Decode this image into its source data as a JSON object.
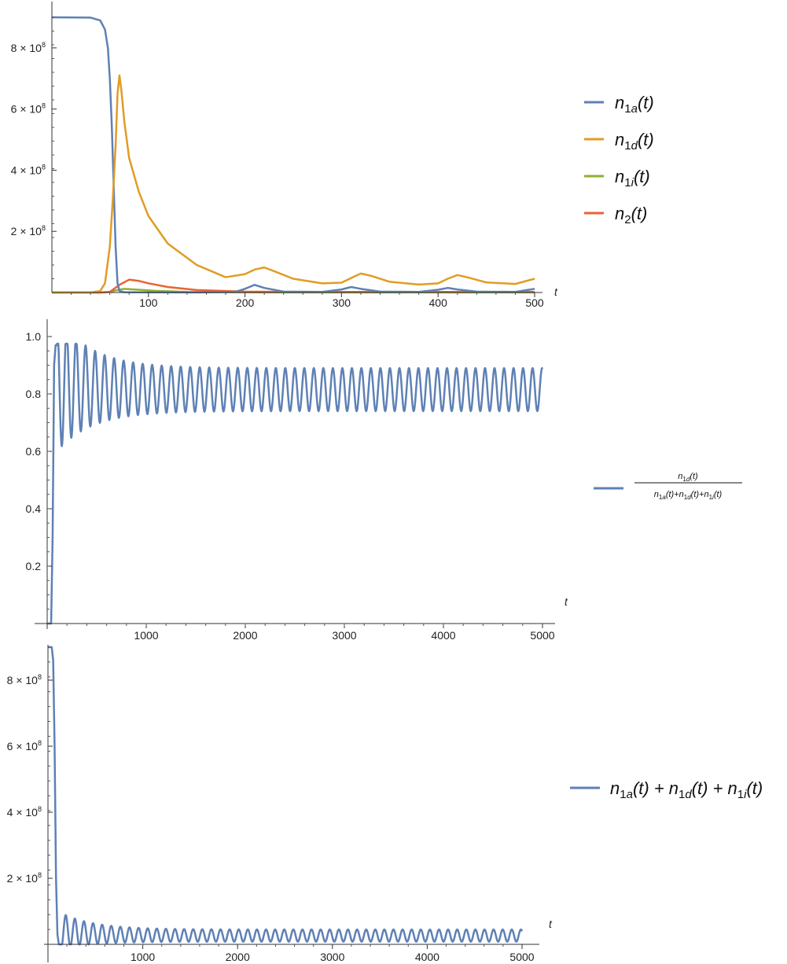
{
  "chart_data": [
    {
      "type": "line",
      "xlabel": "t",
      "xlim": [
        0,
        500
      ],
      "ylim": [
        0,
        900000000
      ],
      "x_ticks": [
        "100",
        "200",
        "300",
        "400",
        "500"
      ],
      "y_ticks": [
        "2 × 10^8",
        "4 × 10^8",
        "6 × 10^8",
        "8 × 10^8"
      ],
      "legend_position": "right",
      "series": [
        {
          "name": "n1a(t)",
          "color": "#5E81B5",
          "x": [
            0,
            40,
            50,
            55,
            58,
            60,
            62,
            64,
            66,
            68,
            70,
            75,
            100,
            150,
            190,
            200,
            210,
            220,
            240,
            280,
            300,
            310,
            320,
            340,
            380,
            400,
            410,
            420,
            440,
            480,
            500
          ],
          "y": [
            900000000,
            899000000,
            890000000,
            860000000,
            800000000,
            700000000,
            550000000,
            350000000,
            150000000,
            30000000,
            5000000,
            1000000,
            500000,
            300000,
            2000000,
            12000000,
            25000000,
            15000000,
            3000000,
            2000000,
            10000000,
            18000000,
            12000000,
            3000000,
            2000000,
            9000000,
            15000000,
            10000000,
            3000000,
            2000000,
            12000000
          ]
        },
        {
          "name": "n1d(t)",
          "color": "#E19C24",
          "x": [
            0,
            40,
            50,
            55,
            60,
            63,
            66,
            68,
            70,
            72,
            75,
            80,
            90,
            100,
            120,
            150,
            180,
            200,
            210,
            220,
            230,
            250,
            280,
            300,
            315,
            320,
            330,
            350,
            380,
            400,
            410,
            420,
            430,
            450,
            480,
            500
          ],
          "y": [
            0,
            500000,
            5000000,
            30000000,
            150000000,
            300000000,
            480000000,
            650000000,
            710000000,
            660000000,
            560000000,
            440000000,
            330000000,
            250000000,
            160000000,
            90000000,
            50000000,
            60000000,
            75000000,
            82000000,
            70000000,
            45000000,
            30000000,
            32000000,
            55000000,
            62000000,
            55000000,
            35000000,
            26000000,
            30000000,
            45000000,
            57000000,
            50000000,
            33000000,
            28000000,
            45000000
          ]
        },
        {
          "name": "n1i(t)",
          "color": "#8FB032",
          "x": [
            0,
            50,
            60,
            68,
            75,
            90,
            110,
            140,
            200,
            300,
            400,
            500
          ],
          "y": [
            0,
            100000,
            2000000,
            8000000,
            12000000,
            9000000,
            5000000,
            2000000,
            500000,
            300000,
            300000,
            300000
          ]
        },
        {
          "name": "n2(t)",
          "color": "#EB6235",
          "x": [
            0,
            50,
            60,
            70,
            80,
            90,
            100,
            120,
            150,
            200,
            250,
            300,
            350,
            400,
            450,
            500
          ],
          "y": [
            0,
            100000,
            2000000,
            25000000,
            42000000,
            38000000,
            30000000,
            18000000,
            8000000,
            3000000,
            2000000,
            2000000,
            2000000,
            2000000,
            2000000,
            2000000
          ]
        }
      ]
    },
    {
      "type": "line",
      "xlabel": "t",
      "xlim": [
        0,
        5000
      ],
      "ylim": [
        0,
        1.0
      ],
      "x_ticks": [
        "1000",
        "2000",
        "3000",
        "4000",
        "5000"
      ],
      "y_ticks": [
        "0.2",
        "0.4",
        "0.6",
        "0.8",
        "1.0"
      ],
      "legend_position": "right",
      "oscillation": {
        "start": 100,
        "end": 5000,
        "period": 96,
        "first_trough": 0.6,
        "settled_min": 0.74,
        "settled_max": 0.89,
        "peak": 0.97
      },
      "series": [
        {
          "name": "n1d(t) / (n1a(t)+n1d(t)+n1i(t))",
          "color": "#5E81B5"
        }
      ]
    },
    {
      "type": "line",
      "xlabel": "t",
      "xlim": [
        0,
        5000
      ],
      "ylim": [
        0,
        900000000
      ],
      "x_ticks": [
        "1000",
        "2000",
        "3000",
        "4000",
        "5000"
      ],
      "y_ticks": [
        "2 × 10^8",
        "4 × 10^8",
        "6 × 10^8",
        "8 × 10^8"
      ],
      "legend_position": "right",
      "oscillation": {
        "start": 100,
        "end": 5000,
        "period": 96,
        "initial": 900000000,
        "first_peak": 90000000,
        "settled_max": 45000000,
        "settled_min": 8000000
      },
      "series": [
        {
          "name": "n1a(t) + n1d(t) + n1i(t)",
          "color": "#5E81B5"
        }
      ]
    }
  ]
}
